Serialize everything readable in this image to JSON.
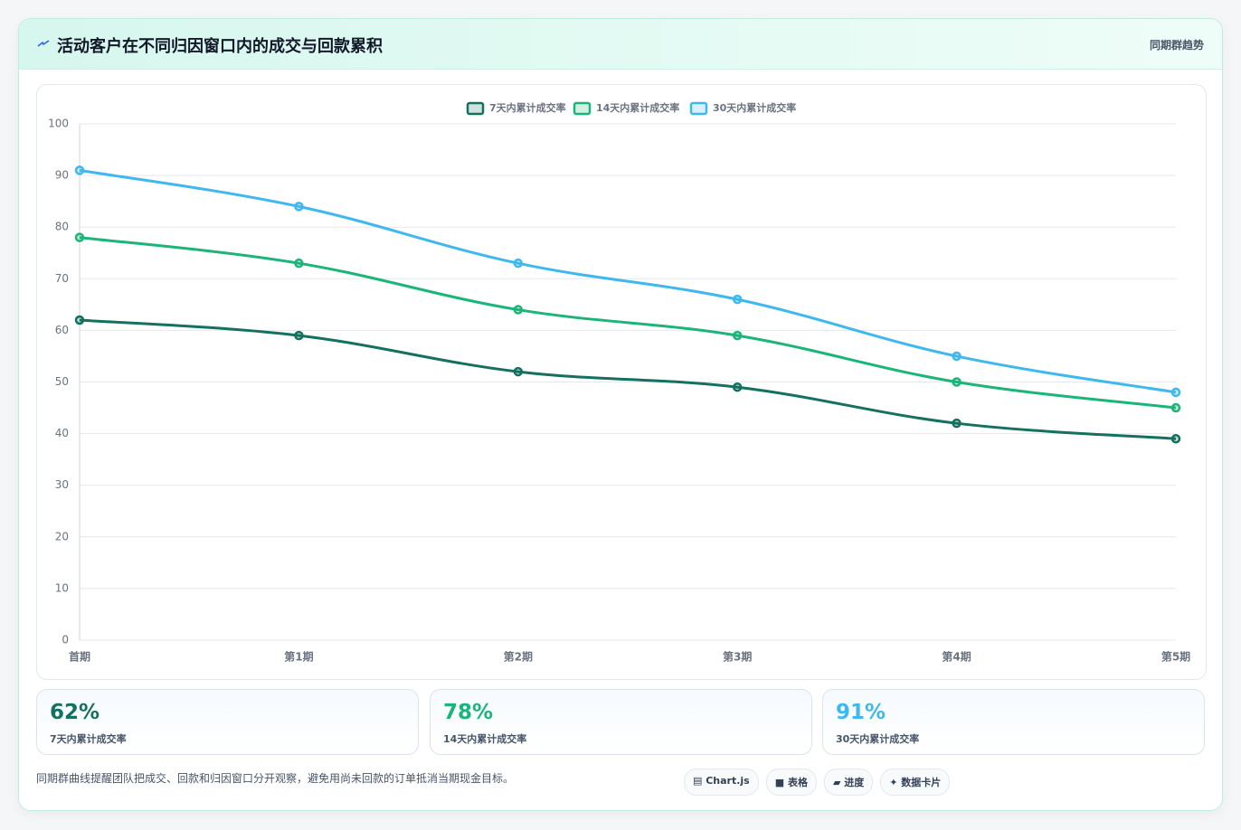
{
  "header": {
    "title": "活动客户在不同归因窗口内的成交与回款累积",
    "tag": "同期群趋势"
  },
  "chart_data": {
    "type": "line",
    "categories": [
      "首期",
      "第1期",
      "第2期",
      "第3期",
      "第4期",
      "第5期"
    ],
    "series": [
      {
        "name": "7天内累计成交率",
        "color": "#14705f",
        "values": [
          62,
          59,
          52,
          49,
          42,
          39
        ]
      },
      {
        "name": "14天内累计成交率",
        "color": "#1bb57a",
        "values": [
          78,
          73,
          64,
          59,
          50,
          45
        ]
      },
      {
        "name": "30天内累计成交率",
        "color": "#3fb8ee",
        "values": [
          91,
          84,
          73,
          66,
          55,
          48
        ]
      }
    ],
    "ylim": [
      0,
      100
    ],
    "yticks": [
      0,
      10,
      20,
      30,
      40,
      50,
      60,
      70,
      80,
      90,
      100
    ],
    "grid": true,
    "legend": "top"
  },
  "stats": [
    {
      "value": "62%",
      "label": "7天内累计成交率",
      "color": "#14705f"
    },
    {
      "value": "78%",
      "label": "14天内累计成交率",
      "color": "#1bb57a"
    },
    {
      "value": "91%",
      "label": "30天内累计成交率",
      "color": "#3fb8ee"
    }
  ],
  "footer": {
    "note": "同期群曲线提醒团队把成交、回款和归因窗口分开观察，避免用尚未回款的订单抵消当期现金目标。",
    "buttons": [
      "▤ Chart.js",
      "■ 表格",
      "▰ 进度",
      "✦ 数据卡片"
    ]
  }
}
